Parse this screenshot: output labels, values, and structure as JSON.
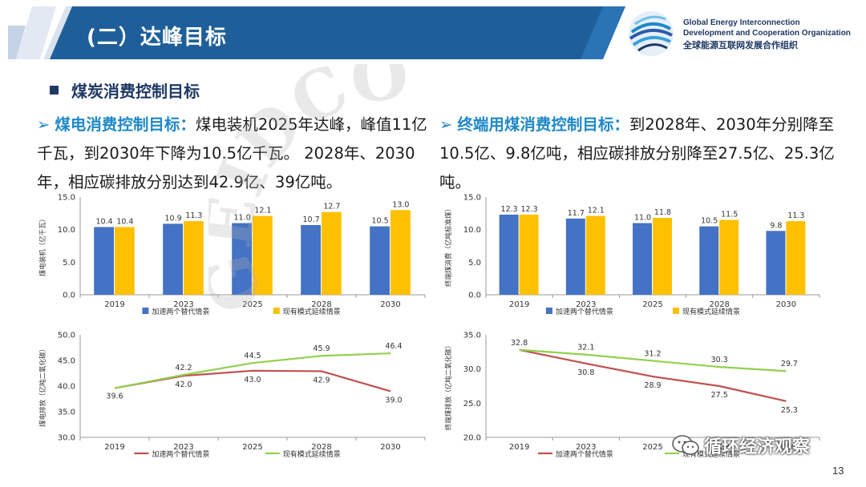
{
  "header": {
    "title": "(二）达峰目标",
    "band_color": "#1f5f99"
  },
  "org": {
    "name_en_line1": "Global Energy Interconnection",
    "name_en_line2": "Development and Cooperation Organization",
    "name_cn": "全球能源互联网发展合作组织"
  },
  "section": {
    "title": "煤炭消费控制目标"
  },
  "left_text": {
    "lead": "煤电消费控制目标：",
    "body": "煤电装机2025年达峰，峰值11亿千瓦，到2030年下降为10.5亿千瓦。 2028年、2030年，相应碳排放分别达到42.9亿、39亿吨。"
  },
  "right_text": {
    "lead": "终端用煤消费控制目标：",
    "body": "到2028年、2030年分别降至10.5亿、9.8亿吨，相应碳排放分别降至27.5亿、25.3亿吨。"
  },
  "watermark_text": "GEIDCO",
  "footer": {
    "wechat_label": "循环经济观察",
    "page_number": "13"
  },
  "colors": {
    "blue_bar": "#4472c4",
    "gold_bar": "#ffc000",
    "red_line": "#c0504d",
    "green_line": "#92d050",
    "accent": "#1e88c8",
    "navy": "#1f3864"
  },
  "chart_data": [
    {
      "type": "bar",
      "ylabel": "煤电装机（亿千瓦）",
      "categories": [
        "2019",
        "2023",
        "2025",
        "2028",
        "2030"
      ],
      "ylim": [
        0,
        15
      ],
      "yticks": [
        "0.0",
        "5.0",
        "10.0",
        "15.0"
      ],
      "series": [
        {
          "name": "加速两个替代情景",
          "values": [
            10.4,
            10.9,
            11.0,
            10.7,
            10.5
          ],
          "labels": [
            "10.4",
            "10.9",
            "11.0",
            "10.7",
            "10.5"
          ]
        },
        {
          "name": "现有模式延续情景",
          "values": [
            10.4,
            11.3,
            12.1,
            12.7,
            13.0
          ],
          "labels": [
            "10.4",
            "11.3",
            "12.1",
            "12.7",
            "13.0"
          ]
        }
      ],
      "legend": "bottom"
    },
    {
      "type": "bar",
      "ylabel": "终端煤消费（亿吨标准煤）",
      "categories": [
        "2019",
        "2023",
        "2025",
        "2028",
        "2030"
      ],
      "ylim": [
        0,
        15
      ],
      "yticks": [
        "0.0",
        "5.0",
        "10.0",
        "15.0"
      ],
      "series": [
        {
          "name": "加速两个替代情景",
          "values": [
            12.3,
            11.7,
            11.0,
            10.5,
            9.8
          ],
          "labels": [
            "12.3",
            "11.7",
            "11.0",
            "10.5",
            "9.8"
          ]
        },
        {
          "name": "现有模式延续情景",
          "values": [
            12.3,
            12.1,
            11.8,
            11.5,
            11.3
          ],
          "labels": [
            "12.3",
            "12.1",
            "11.8",
            "11.5",
            "11.3"
          ]
        }
      ],
      "legend": "bottom"
    },
    {
      "type": "line",
      "ylabel": "煤电排放（亿吨二氧化碳）",
      "categories": [
        "2019",
        "2023",
        "2025",
        "2028",
        "2030"
      ],
      "ylim": [
        30,
        50
      ],
      "yticks": [
        "30.0",
        "35.0",
        "40.0",
        "45.0",
        "50.0"
      ],
      "series": [
        {
          "name": "加速两个替代情景",
          "values": [
            39.6,
            42.0,
            43.0,
            42.9,
            39.0
          ],
          "labels": [
            "39.6",
            "42.0",
            "43.0",
            "42.9",
            "39.0"
          ]
        },
        {
          "name": "现有模式延续情景",
          "values": [
            39.6,
            42.2,
            44.5,
            45.9,
            46.4
          ],
          "labels": [
            "",
            "42.2",
            "44.5",
            "45.9",
            "46.4"
          ]
        }
      ],
      "legend": "bottom"
    },
    {
      "type": "line",
      "ylabel": "终端煤排放（亿吨二氧化碳）",
      "categories": [
        "2019",
        "2023",
        "2025",
        "2028",
        "2030"
      ],
      "ylim": [
        20,
        35
      ],
      "yticks": [
        "20.0",
        "25.0",
        "30.0",
        "35.0"
      ],
      "series": [
        {
          "name": "加速两个替代情景",
          "values": [
            32.8,
            30.8,
            28.9,
            27.5,
            25.3
          ],
          "labels": [
            "32.8",
            "30.8",
            "28.9",
            "27.5",
            "25.3"
          ]
        },
        {
          "name": "现有模式延续情景",
          "values": [
            32.8,
            32.1,
            31.2,
            30.3,
            29.7
          ],
          "labels": [
            "",
            "32.1",
            "31.2",
            "30.3",
            "29.7"
          ]
        }
      ],
      "legend": "bottom"
    }
  ]
}
